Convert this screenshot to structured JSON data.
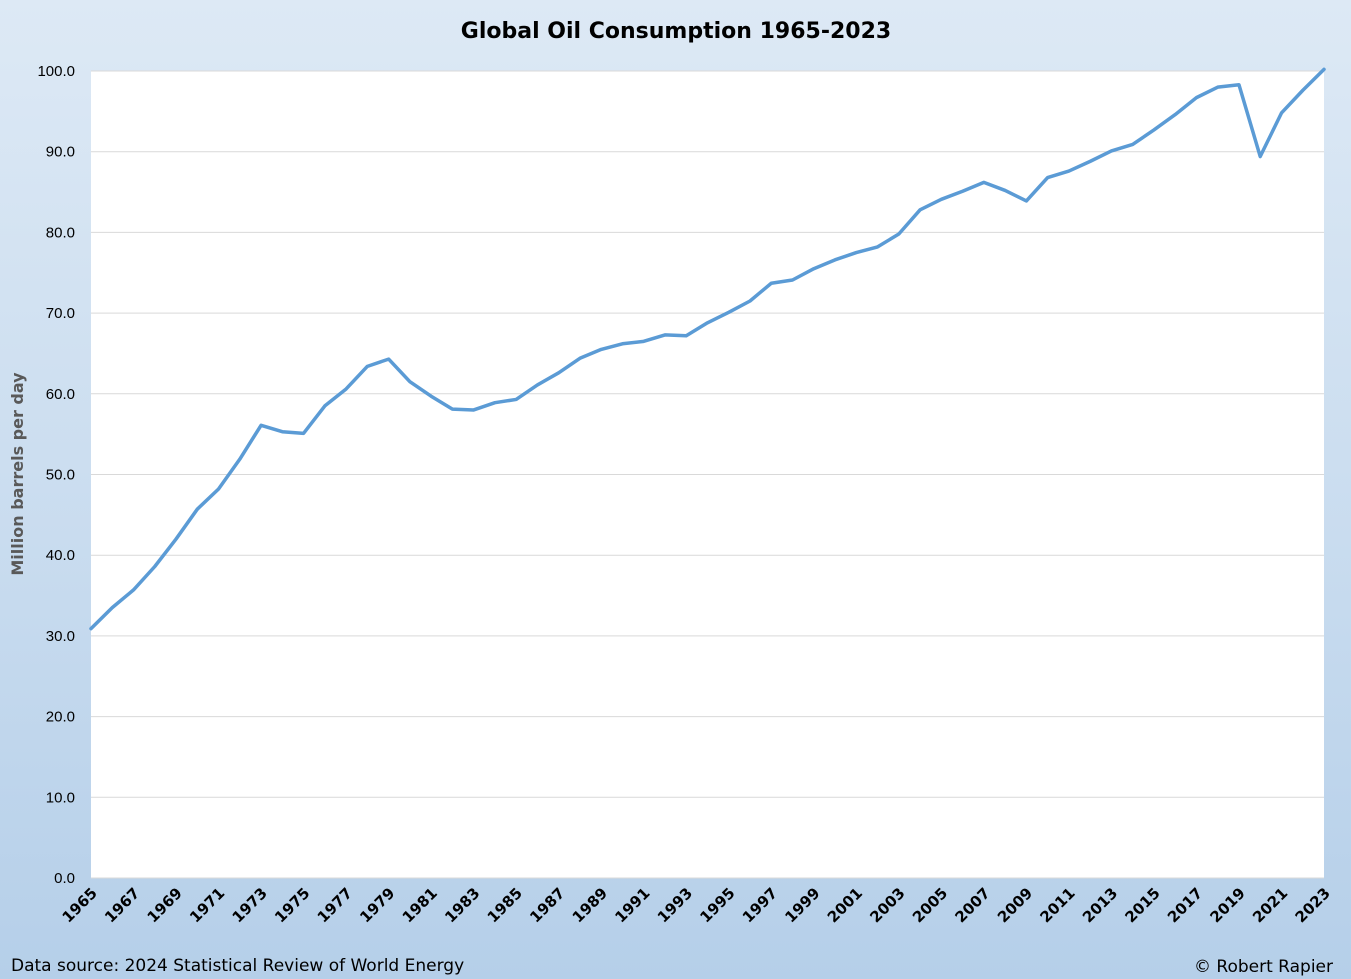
{
  "chart_data": {
    "type": "line",
    "title": "Global Oil Consumption 1965-2023",
    "xlabel": "",
    "ylabel": "Million barrels per day",
    "ylim": [
      0,
      100
    ],
    "yticks": [
      "0.0",
      "10.0",
      "20.0",
      "30.0",
      "40.0",
      "50.0",
      "60.0",
      "70.0",
      "80.0",
      "90.0",
      "100.0"
    ],
    "xlim": [
      1965,
      2023
    ],
    "xticks": [
      "1965",
      "1967",
      "1969",
      "1971",
      "1973",
      "1975",
      "1977",
      "1979",
      "1981",
      "1983",
      "1985",
      "1987",
      "1989",
      "1991",
      "1993",
      "1995",
      "1997",
      "1999",
      "2001",
      "2003",
      "2005",
      "2007",
      "2009",
      "2011",
      "2013",
      "2015",
      "2017",
      "2019",
      "2021",
      "2023"
    ],
    "grid": true,
    "legend": "none",
    "series": [
      {
        "name": "Global Oil Consumption",
        "color": "#5b9bd5",
        "x": [
          1965,
          1966,
          1967,
          1968,
          1969,
          1970,
          1971,
          1972,
          1973,
          1974,
          1975,
          1976,
          1977,
          1978,
          1979,
          1980,
          1981,
          1982,
          1983,
          1984,
          1985,
          1986,
          1987,
          1988,
          1989,
          1990,
          1991,
          1992,
          1993,
          1994,
          1995,
          1996,
          1997,
          1998,
          1999,
          2000,
          2001,
          2002,
          2003,
          2004,
          2005,
          2006,
          2007,
          2008,
          2009,
          2010,
          2011,
          2012,
          2013,
          2014,
          2015,
          2016,
          2017,
          2018,
          2019,
          2020,
          2021,
          2022,
          2023
        ],
        "values": [
          30.9,
          33.5,
          35.7,
          38.6,
          42.0,
          45.7,
          48.2,
          51.9,
          56.1,
          55.3,
          55.1,
          58.5,
          60.6,
          63.4,
          64.3,
          61.5,
          59.7,
          58.1,
          58.0,
          58.9,
          59.3,
          61.1,
          62.6,
          64.4,
          65.5,
          66.2,
          66.5,
          67.3,
          67.2,
          68.8,
          70.1,
          71.5,
          73.7,
          74.1,
          75.5,
          76.6,
          77.5,
          78.2,
          79.8,
          82.8,
          84.1,
          85.1,
          86.2,
          85.2,
          83.9,
          86.8,
          87.6,
          88.8,
          90.1,
          90.9,
          92.7,
          94.6,
          96.7,
          98.0,
          98.3,
          89.4,
          94.8,
          97.6,
          100.2
        ]
      }
    ]
  },
  "footer": {
    "source": "Data source: 2024 Statistical Review of World Energy",
    "credit": "© Robert Rapier"
  }
}
